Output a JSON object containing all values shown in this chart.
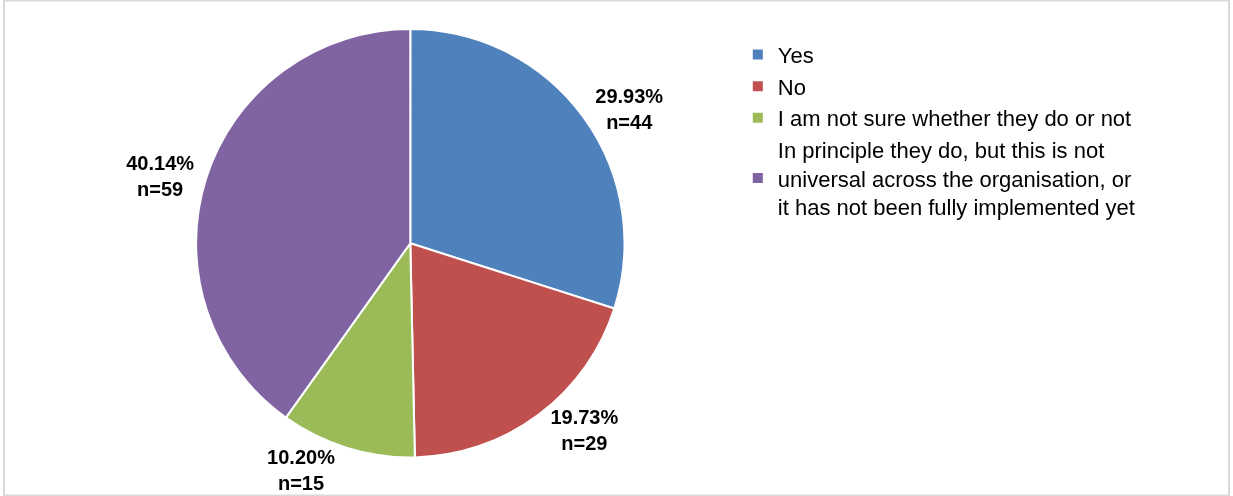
{
  "chart_data": {
    "type": "pie",
    "categories": [
      "Yes",
      "No",
      "I am not sure whether they do or not",
      "In principle they do, but this is not universal across the organisation, or it has not been fully implemented yet"
    ],
    "values": [
      44,
      29,
      15,
      59
    ],
    "colors": [
      "#4f81bd",
      "#c0504d",
      "#9bbb59",
      "#8064a2"
    ],
    "value_labels": [
      "29.93%\nn=44",
      "19.73%\nn=29",
      "10.20%\nn=15",
      "40.14%\nn=59"
    ],
    "legend": "right"
  }
}
